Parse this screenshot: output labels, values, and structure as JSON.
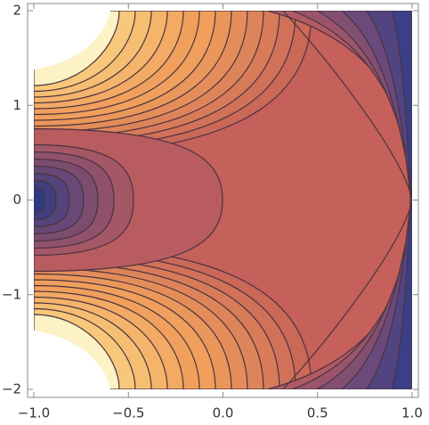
{
  "chart_data": {
    "type": "contour",
    "xlim": [
      -1,
      1
    ],
    "ylim": [
      -2,
      2
    ],
    "xticks": [
      {
        "value": -1,
        "label": "−1.0"
      },
      {
        "value": -0.5,
        "label": "−0.5"
      },
      {
        "value": 0,
        "label": "0.0"
      },
      {
        "value": 0.5,
        "label": "0.5"
      },
      {
        "value": 1,
        "label": "1.0"
      }
    ],
    "yticks": [
      {
        "value": -2,
        "label": "−2"
      },
      {
        "value": -1,
        "label": "−1"
      },
      0,
      1,
      2
    ]
  }
}
